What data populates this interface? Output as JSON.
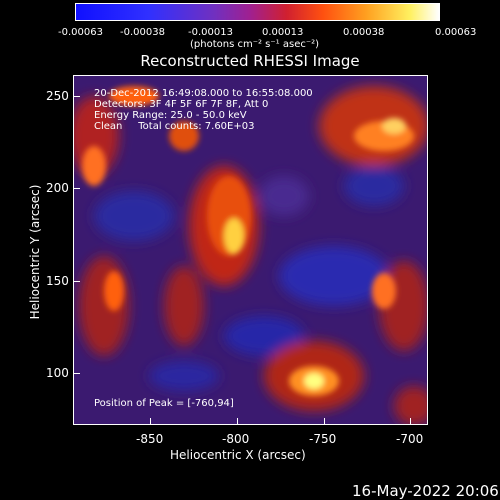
{
  "colorbar": {
    "ticks": [
      "-0.00063",
      "-0.00038",
      "-0.00013",
      "0.00013",
      "0.00038",
      "0.00063"
    ],
    "unit": "(photons cm⁻² s⁻¹ asec⁻²)"
  },
  "title": "Reconstructed RHESSI Image",
  "info": {
    "time": "20-Dec-2012 16:49:08.000 to 16:55:08.000",
    "detectors": "Detectors: 3F 4F 5F 6F 7F 8F, Att 0",
    "energy": "Energy Range: 25.0 - 50.0 keV",
    "clean": "Clean     Total counts: 7.60E+03"
  },
  "peak": "Position of Peak = [-760,94]",
  "axes": {
    "xlabel": "Heliocentric X (arcsec)",
    "ylabel": "Heliocentric Y (arcsec)",
    "xticks": [
      "-850",
      "-800",
      "-750",
      "-700"
    ],
    "yticks": [
      "250",
      "200",
      "150",
      "100"
    ]
  },
  "footer": "16-May-2022 20:06"
}
